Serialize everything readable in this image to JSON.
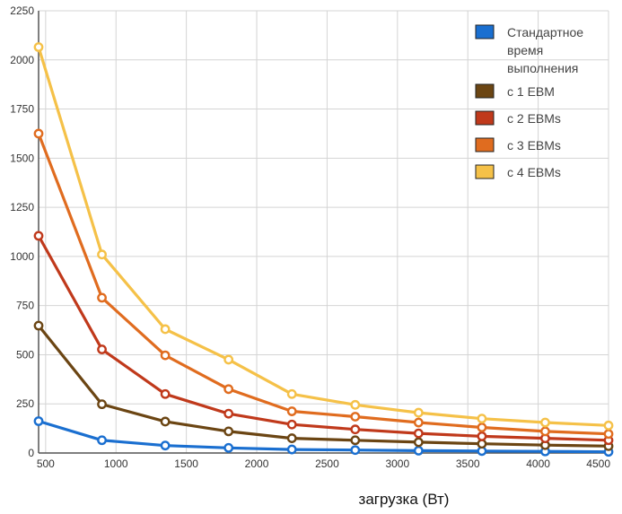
{
  "chart_data": {
    "type": "line",
    "xlabel": "загрузка (Вт)",
    "ylabel": "",
    "xlim": [
      450,
      4500
    ],
    "ylim": [
      0,
      2250
    ],
    "xticks": [
      "500",
      "1000",
      "1500",
      "2000",
      "2500",
      "3000",
      "3500",
      "4000",
      "4500"
    ],
    "yticks": [
      "0",
      "250",
      "500",
      "750",
      "1000",
      "1250",
      "1500",
      "1750",
      "2000",
      "2250"
    ],
    "grid": true,
    "legend_position": "top-right",
    "x": [
      450,
      900,
      1350,
      1800,
      2250,
      2700,
      3150,
      3600,
      4050,
      4500
    ],
    "series": [
      {
        "name": "Стандартное время выполнения",
        "legend_lines": [
          "Стандартное",
          "время",
          "выполнения"
        ],
        "color": "#1a6fd0",
        "values": [
          162,
          65,
          38,
          26,
          18,
          15,
          12,
          10,
          8,
          6
        ]
      },
      {
        "name": "с 1 EBM",
        "legend_lines": [
          "с 1 EBM"
        ],
        "color": "#6b4513",
        "values": [
          648,
          248,
          160,
          110,
          75,
          65,
          55,
          47,
          40,
          35
        ]
      },
      {
        "name": "с 2 EBMs",
        "legend_lines": [
          "с 2 EBMs"
        ],
        "color": "#c0391b",
        "values": [
          1105,
          527,
          300,
          200,
          145,
          120,
          100,
          85,
          75,
          65
        ]
      },
      {
        "name": "с 3 EBMs",
        "legend_lines": [
          "с 3 EBMs"
        ],
        "color": "#e06c1f",
        "values": [
          1625,
          790,
          497,
          325,
          212,
          185,
          155,
          130,
          110,
          97
        ]
      },
      {
        "name": "с 4 EBMs",
        "legend_lines": [
          "с 4 EBMs"
        ],
        "color": "#f5c148",
        "values": [
          2065,
          1010,
          630,
          475,
          300,
          245,
          205,
          175,
          155,
          140
        ]
      }
    ]
  }
}
